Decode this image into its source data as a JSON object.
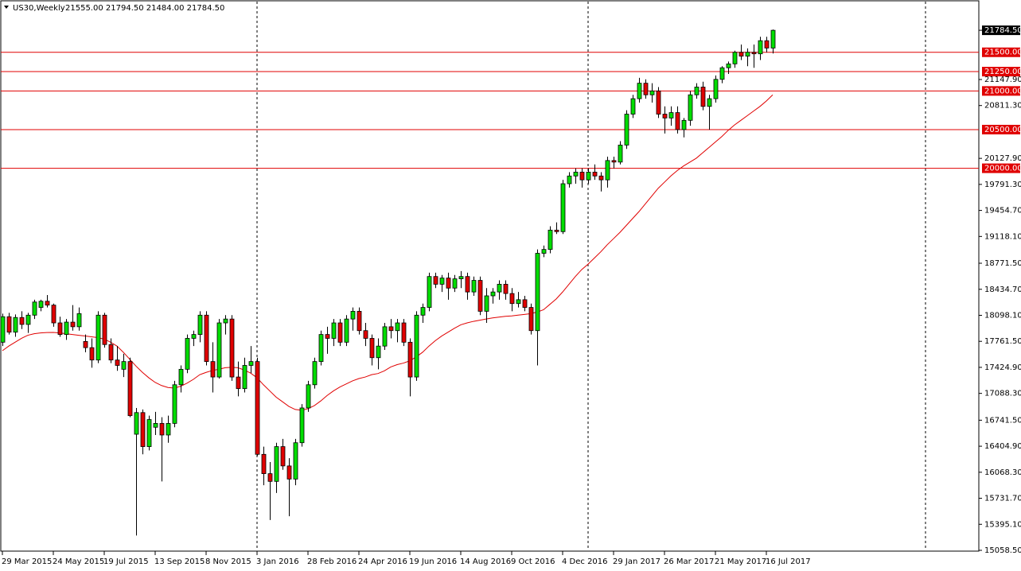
{
  "chart_data": {
    "type": "candlestick",
    "title": "US30,Weekly",
    "title_ohlc": "21555.00 21794.50 21484.00 21784.50",
    "categories": [
      "29 Mar 2015",
      null,
      null,
      null,
      null,
      null,
      null,
      null,
      "24 May 2015",
      null,
      null,
      null,
      null,
      null,
      null,
      null,
      "19 Jul 2015",
      null,
      null,
      null,
      null,
      null,
      null,
      null,
      "13 Sep 2015",
      null,
      null,
      null,
      null,
      null,
      null,
      null,
      "8 Nov 2015",
      null,
      null,
      null,
      null,
      null,
      null,
      null,
      "3 Jan 2016",
      null,
      null,
      null,
      null,
      null,
      null,
      null,
      "28 Feb 2016",
      null,
      null,
      null,
      null,
      null,
      null,
      null,
      "24 Apr 2016",
      null,
      null,
      null,
      null,
      null,
      null,
      null,
      "19 Jun 2016",
      null,
      null,
      null,
      null,
      null,
      null,
      null,
      "14 Aug 2016",
      null,
      null,
      null,
      null,
      null,
      null,
      null,
      "9 Oct 2016",
      null,
      null,
      null,
      null,
      null,
      null,
      null,
      "4 Dec 2016",
      null,
      null,
      null,
      null,
      null,
      null,
      null,
      "29 Jan 2017",
      null,
      null,
      null,
      null,
      null,
      null,
      null,
      "26 Mar 2017",
      null,
      null,
      null,
      null,
      null,
      null,
      null,
      "21 May 2017",
      null,
      null,
      null,
      null,
      null,
      null,
      null,
      "16 Jul 2017",
      null
    ],
    "open": [
      17750,
      18080,
      17880,
      18070,
      17980,
      18100,
      18200,
      18280,
      18230,
      18000,
      17850,
      18010,
      17950,
      17760,
      17680,
      17520,
      18100,
      17720,
      17520,
      17400,
      17500,
      16560,
      16840,
      16400,
      16650,
      16700,
      16550,
      16700,
      17200,
      17400,
      17800,
      17850,
      18100,
      17500,
      17300,
      18000,
      18050,
      17300,
      17150,
      17450,
      17500,
      16300,
      16050,
      15950,
      16400,
      16150,
      15980,
      16450,
      16900,
      17200,
      17500,
      17850,
      17800,
      18000,
      17750,
      18050,
      18150,
      17900,
      17800,
      17550,
      17700,
      17950,
      17900,
      18000,
      17750,
      17300,
      18100,
      18200,
      18600,
      18500,
      18580,
      18450,
      18570,
      18600,
      18400,
      18550,
      18150,
      18350,
      18400,
      18500,
      18380,
      18250,
      18300,
      18200,
      17900,
      18900,
      18950,
      19200,
      19180,
      19800,
      19900,
      19950,
      19850,
      19950,
      19900,
      19850,
      20100,
      20080,
      20300,
      20700,
      20900,
      21100,
      20950,
      21000,
      20700,
      20650,
      20720,
      20500,
      20620,
      20950,
      21050,
      20800,
      20900,
      21150,
      21300,
      21350,
      21500,
      21450,
      21500,
      21480,
      21650,
      21555
    ],
    "high": [
      18120,
      18130,
      18110,
      18150,
      18130,
      18300,
      18300,
      18360,
      18250,
      18080,
      18050,
      18230,
      18200,
      17850,
      17800,
      18150,
      18130,
      17800,
      17700,
      17600,
      17550,
      16900,
      16880,
      16800,
      16850,
      16780,
      16800,
      17250,
      17450,
      17850,
      17900,
      18150,
      18150,
      17750,
      18050,
      18100,
      18100,
      17500,
      17550,
      17700,
      17550,
      16400,
      16200,
      16450,
      16500,
      16250,
      16500,
      16950,
      17250,
      17550,
      17900,
      17950,
      18050,
      18050,
      18100,
      18200,
      18200,
      18000,
      17850,
      17800,
      18000,
      18050,
      18050,
      18050,
      17800,
      18150,
      18250,
      18650,
      18650,
      18620,
      18650,
      18620,
      18670,
      18650,
      18600,
      18600,
      18450,
      18450,
      18550,
      18550,
      18450,
      18400,
      18350,
      18250,
      18950,
      19000,
      19250,
      19300,
      19850,
      19950,
      20000,
      20000,
      20000,
      20050,
      19950,
      20150,
      20150,
      20350,
      20750,
      20950,
      21170,
      21150,
      21100,
      21050,
      20800,
      20800,
      20800,
      20650,
      21000,
      21100,
      21120,
      20950,
      21200,
      21320,
      21380,
      21520,
      21600,
      21550,
      21600,
      21700,
      21700,
      21794.5
    ],
    "low": [
      17700,
      17850,
      17820,
      17920,
      17870,
      18050,
      18150,
      18200,
      17950,
      17820,
      17780,
      17900,
      17900,
      17620,
      17420,
      17480,
      17680,
      17480,
      17380,
      17300,
      16780,
      15250,
      16300,
      16350,
      16550,
      15950,
      16450,
      16650,
      17100,
      17350,
      17700,
      17750,
      17450,
      17100,
      17280,
      17850,
      17250,
      17050,
      17100,
      17350,
      16280,
      15900,
      15450,
      15800,
      16100,
      15500,
      15900,
      16400,
      16850,
      17150,
      17450,
      17600,
      17700,
      17700,
      17700,
      17900,
      17850,
      17700,
      17450,
      17400,
      17650,
      17800,
      17750,
      17700,
      17050,
      17250,
      18000,
      18150,
      18450,
      18400,
      18300,
      18400,
      18450,
      18300,
      18350,
      18100,
      18000,
      18250,
      18300,
      18300,
      18150,
      18200,
      18150,
      17850,
      17450,
      18850,
      18900,
      19150,
      19150,
      19750,
      19800,
      19750,
      19800,
      19850,
      19700,
      19750,
      20000,
      20050,
      20250,
      20650,
      20850,
      20900,
      20850,
      20650,
      20450,
      20550,
      20450,
      20400,
      20550,
      20900,
      20750,
      20500,
      20850,
      21100,
      21220,
      21300,
      21400,
      21320,
      21300,
      21400,
      21500,
      21484
    ],
    "close": [
      18080,
      17880,
      18070,
      17980,
      18100,
      18270,
      18280,
      18230,
      18000,
      17850,
      18010,
      17950,
      18120,
      17680,
      17520,
      18100,
      17720,
      17520,
      17450,
      17500,
      16800,
      16840,
      16400,
      16750,
      16700,
      16550,
      16700,
      17200,
      17400,
      17800,
      17850,
      18100,
      17500,
      17300,
      18000,
      18050,
      17300,
      17150,
      17450,
      17500,
      16300,
      16050,
      15950,
      16400,
      16150,
      15980,
      16450,
      16900,
      17200,
      17500,
      17850,
      17800,
      18000,
      17750,
      18050,
      18150,
      17900,
      17800,
      17550,
      17700,
      17950,
      17900,
      18000,
      17750,
      17300,
      18100,
      18200,
      18600,
      18500,
      18580,
      18450,
      18570,
      18600,
      18400,
      18550,
      18150,
      18350,
      18400,
      18500,
      18380,
      18250,
      18300,
      18200,
      17900,
      18900,
      18950,
      19200,
      19180,
      19800,
      19900,
      19950,
      19850,
      19950,
      19900,
      19850,
      20100,
      20080,
      20300,
      20700,
      20900,
      21100,
      20950,
      21000,
      20700,
      20650,
      20720,
      20500,
      20620,
      20950,
      21050,
      20800,
      20900,
      21150,
      21300,
      21350,
      21500,
      21450,
      21500,
      21480,
      21650,
      21555,
      21784.5
    ],
    "up_color": "#00dd00",
    "down_color": "#e00000",
    "moving_average": {
      "color": "#e00000",
      "values": [
        17640,
        17700,
        17750,
        17800,
        17840,
        17860,
        17870,
        17875,
        17877,
        17870,
        17860,
        17850,
        17840,
        17830,
        17820,
        17810,
        17790,
        17750,
        17700,
        17620,
        17530,
        17440,
        17360,
        17290,
        17230,
        17190,
        17165,
        17157,
        17180,
        17220,
        17270,
        17330,
        17360,
        17385,
        17400,
        17420,
        17425,
        17420,
        17390,
        17350,
        17290,
        17200,
        17120,
        17040,
        16980,
        16920,
        16880,
        16870,
        16890,
        16930,
        16990,
        17060,
        17120,
        17170,
        17210,
        17250,
        17280,
        17300,
        17330,
        17345,
        17380,
        17430,
        17460,
        17480,
        17510,
        17560,
        17620,
        17700,
        17770,
        17830,
        17880,
        17930,
        17975,
        18000,
        18020,
        18035,
        18050,
        18065,
        18075,
        18085,
        18090,
        18100,
        18110,
        18120,
        18140,
        18170,
        18240,
        18310,
        18400,
        18500,
        18600,
        18690,
        18760,
        18840,
        18920,
        19010,
        19090,
        19170,
        19260,
        19350,
        19440,
        19540,
        19640,
        19740,
        19820,
        19900,
        19970,
        20030,
        20080,
        20130,
        20200,
        20270,
        20340,
        20410,
        20490,
        20560,
        20620,
        20680,
        20740,
        20800,
        20870,
        20950
      ]
    },
    "levels": {
      "color": "#e00000",
      "values": [
        {
          "value": 21500,
          "label": "21500.00"
        },
        {
          "value": 21250,
          "label": "21250.00"
        },
        {
          "value": 21000,
          "label": "21000.00"
        },
        {
          "value": 20500,
          "label": "20500.00"
        },
        {
          "value": 20000,
          "label": "20000.00"
        }
      ]
    },
    "last_price": {
      "value": 21784.5,
      "label": "21784.50"
    },
    "ylim": [
      15007,
      22166
    ],
    "yticks": [
      {
        "value": 21147.9,
        "label": "21147.90"
      },
      {
        "value": 20811.3,
        "label": "20811.30"
      },
      {
        "value": 20127.9,
        "label": "20127.90"
      },
      {
        "value": 19791.3,
        "label": "19791.30"
      },
      {
        "value": 19454.7,
        "label": "19454.70"
      },
      {
        "value": 19118.1,
        "label": "19118.10"
      },
      {
        "value": 18771.5,
        "label": "18771.50"
      },
      {
        "value": 18434.7,
        "label": "18434.70"
      },
      {
        "value": 18098.1,
        "label": "18098.10"
      },
      {
        "value": 17761.5,
        "label": "17761.50"
      },
      {
        "value": 17424.9,
        "label": "17424.90"
      },
      {
        "value": 17088.3,
        "label": "17088.30"
      },
      {
        "value": 16741.5,
        "label": "16741.50"
      },
      {
        "value": 16404.9,
        "label": "16404.90"
      },
      {
        "value": 16068.3,
        "label": "16068.30"
      },
      {
        "value": 15731.7,
        "label": "15731.70"
      },
      {
        "value": 15395.1,
        "label": "15395.10"
      },
      {
        "value": 15058.5,
        "label": "15058.50"
      }
    ],
    "grid": false
  }
}
